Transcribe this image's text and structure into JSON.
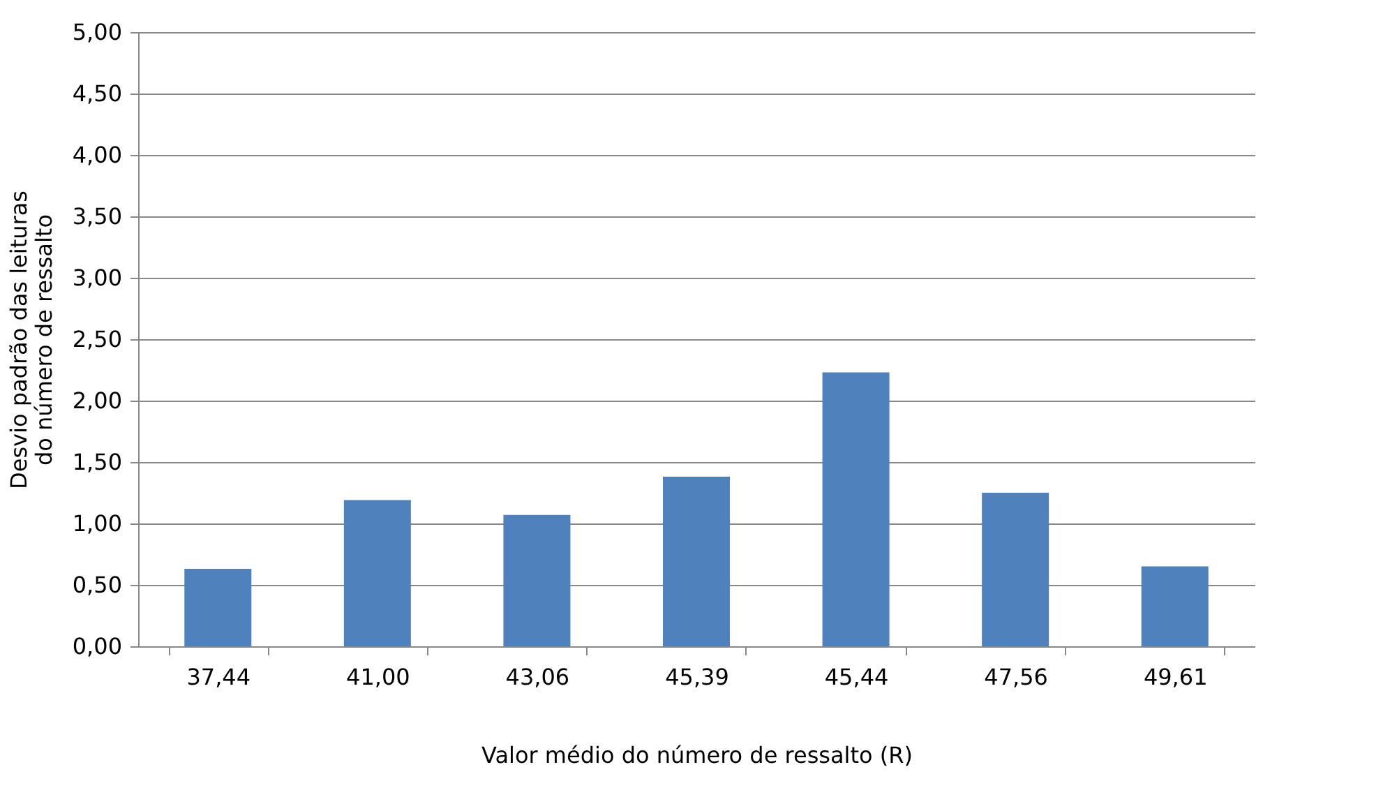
{
  "chart_data": {
    "type": "bar",
    "xlabel": "Valor médio do número de ressalto (R)",
    "ylabel": "Desvio padrão das leituras do número de ressalto",
    "categories": [
      "37,44",
      "41,00",
      "43,06",
      "45,39",
      "45,44",
      "47,56",
      "49,61"
    ],
    "values": [
      0.63,
      1.19,
      1.07,
      1.38,
      2.23,
      1.25,
      0.65
    ],
    "color": "#4f81bd",
    "ylim": [
      0,
      5
    ],
    "yticks": [
      {
        "value": 0,
        "label": "0,00"
      },
      {
        "value": 0.5,
        "label": "0,50"
      },
      {
        "value": 1,
        "label": "1,00"
      },
      {
        "value": 1.5,
        "label": "1,50"
      },
      {
        "value": 2,
        "label": "2,00"
      },
      {
        "value": 2.5,
        "label": "2,50"
      },
      {
        "value": 3,
        "label": "3,00"
      },
      {
        "value": 3.5,
        "label": "3,50"
      },
      {
        "value": 4,
        "label": "4,00"
      },
      {
        "value": 4.5,
        "label": "4,50"
      },
      {
        "value": 5,
        "label": "5,00"
      }
    ],
    "grid": "y"
  }
}
